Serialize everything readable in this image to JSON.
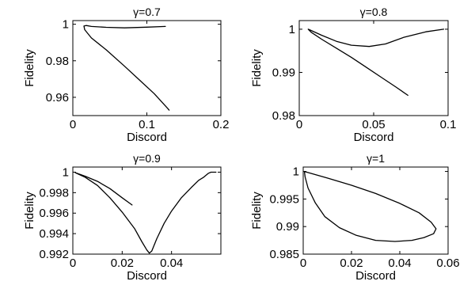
{
  "chart_data": [
    {
      "type": "line",
      "title": "γ=0.7",
      "xlabel": "Discord",
      "ylabel": "Fidelity",
      "xlim": [
        0,
        0.2
      ],
      "ylim": [
        0.95,
        1.002
      ],
      "xticks": [
        0,
        0.1,
        0.2
      ],
      "xtick_labels": [
        "0",
        "0.1",
        "0.2"
      ],
      "yticks": [
        0.96,
        0.98,
        1
      ],
      "ytick_labels": [
        "0.96",
        "0.98",
        "1"
      ],
      "series": [
        {
          "x": [
            0.125,
            0.1,
            0.07,
            0.045,
            0.025,
            0.018,
            0.015,
            0.016,
            0.025,
            0.045,
            0.07,
            0.09,
            0.11,
            0.128,
            0.13
          ],
          "y": [
            0.9988,
            0.9984,
            0.998,
            0.9983,
            0.9988,
            0.9993,
            0.999,
            0.997,
            0.9925,
            0.986,
            0.977,
            0.9695,
            0.962,
            0.954,
            0.953
          ]
        }
      ]
    },
    {
      "type": "line",
      "title": "γ=0.8",
      "xlabel": "Discord",
      "ylabel": "Fidelity",
      "xlim": [
        0,
        0.1
      ],
      "ylim": [
        0.98,
        1.002
      ],
      "xticks": [
        0,
        0.05,
        0.1
      ],
      "xtick_labels": [
        "0",
        "0.05",
        "0.1"
      ],
      "yticks": [
        0.98,
        0.99,
        1
      ],
      "ytick_labels": [
        "0.98",
        "0.99",
        "1"
      ],
      "series": [
        {
          "x": [
            0.097,
            0.085,
            0.07,
            0.058,
            0.047,
            0.035,
            0.025,
            0.015,
            0.008,
            0.006,
            0.008,
            0.015,
            0.025,
            0.035,
            0.045,
            0.055,
            0.065,
            0.073
          ],
          "y": [
            1.0,
            0.9994,
            0.9981,
            0.9966,
            0.996,
            0.9963,
            0.9972,
            0.9986,
            0.9997,
            1.0,
            0.9993,
            0.9977,
            0.9956,
            0.9935,
            0.9912,
            0.9889,
            0.9866,
            0.9847
          ]
        }
      ]
    },
    {
      "type": "line",
      "title": "γ=0.9",
      "xlabel": "Discord",
      "ylabel": "Fidelity",
      "xlim": [
        0,
        0.06
      ],
      "ylim": [
        0.992,
        1.0005
      ],
      "xticks": [
        0,
        0.02,
        0.04
      ],
      "xtick_labels": [
        "0",
        "0.02",
        "0.04"
      ],
      "yticks": [
        0.992,
        0.994,
        0.996,
        0.998,
        1
      ],
      "ytick_labels": [
        "0.992",
        "0.994",
        "0.996",
        "0.998",
        "1"
      ],
      "series": [
        {
          "x": [
            0.024,
            0.02,
            0.015,
            0.01,
            0.005,
            0.001,
            0.005,
            0.01,
            0.015,
            0.02,
            0.025,
            0.028,
            0.03,
            0.031,
            0.032,
            0.034,
            0.037,
            0.04,
            0.044,
            0.048,
            0.051,
            0.053,
            0.055,
            0.056,
            0.058
          ],
          "y": [
            0.9968,
            0.9975,
            0.9984,
            0.9991,
            0.9996,
            0.99995,
            0.9995,
            0.9987,
            0.9975,
            0.9961,
            0.9945,
            0.9932,
            0.9924,
            0.9921,
            0.9923,
            0.9935,
            0.995,
            0.9962,
            0.9975,
            0.9985,
            0.9992,
            0.9995,
            0.9999,
            1.0,
            1.0
          ]
        }
      ]
    },
    {
      "type": "line",
      "title": "γ=1",
      "xlabel": "Discord",
      "ylabel": "Fidelity",
      "xlim": [
        0,
        0.06
      ],
      "ylim": [
        0.985,
        1.0008
      ],
      "xticks": [
        0,
        0.02,
        0.04,
        0.06
      ],
      "xtick_labels": [
        "0",
        "0.02",
        "0.04",
        "0.06"
      ],
      "yticks": [
        0.985,
        0.99,
        0.995,
        1
      ],
      "ytick_labels": [
        "0.985",
        "0.99",
        "0.995",
        "1"
      ],
      "series": [
        {
          "x": [
            0.0005,
            0.01,
            0.02,
            0.03,
            0.04,
            0.048,
            0.053,
            0.055,
            0.054,
            0.05,
            0.045,
            0.038,
            0.03,
            0.022,
            0.015,
            0.009,
            0.005,
            0.002,
            0.0008,
            0.0005
          ],
          "y": [
            1.0,
            0.9988,
            0.9975,
            0.996,
            0.9942,
            0.9925,
            0.9908,
            0.9896,
            0.9887,
            0.988,
            0.9875,
            0.9873,
            0.9875,
            0.9884,
            0.9898,
            0.9918,
            0.9943,
            0.997,
            0.999,
            1.0
          ]
        }
      ]
    }
  ]
}
